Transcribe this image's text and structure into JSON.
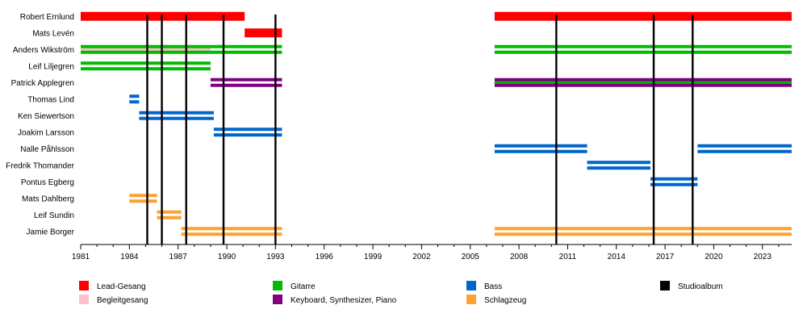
{
  "chart_data": {
    "type": "timeline",
    "title": "",
    "xlabel": "",
    "ylabel": "",
    "xlim": [
      1981,
      2024.8
    ],
    "x_ticks": [
      "1981",
      "1984",
      "1987",
      "1990",
      "1993",
      "1996",
      "1999",
      "2002",
      "2005",
      "2008",
      "2011",
      "2014",
      "2017",
      "2020",
      "2023"
    ],
    "grid": false,
    "legend_position": "bottom",
    "roles": [
      {
        "name": "Lead-Gesang",
        "color": "#ff0000"
      },
      {
        "name": "Begleitgesang",
        "color": "#ffc0cb"
      },
      {
        "name": "Gitarre",
        "color": "#00bb00"
      },
      {
        "name": "Keyboard, Synthesizer, Piano",
        "color": "#800080"
      },
      {
        "name": "Bass",
        "color": "#0066cc"
      },
      {
        "name": "Schlagzeug",
        "color": "#ffa030"
      },
      {
        "name": "Studioalbum",
        "color": "#000000"
      }
    ],
    "members": [
      {
        "name": "Robert Ernlund",
        "periods": [
          {
            "start": 1981,
            "end": 1991.1,
            "roles": [
              "Lead-Gesang"
            ]
          },
          {
            "start": 2006.5,
            "end": 2024.8,
            "roles": [
              "Lead-Gesang"
            ]
          }
        ]
      },
      {
        "name": "Mats Levén",
        "periods": [
          {
            "start": 1991.1,
            "end": 1993.4,
            "roles": [
              "Lead-Gesang"
            ]
          }
        ]
      },
      {
        "name": "Anders Wikström",
        "periods": [
          {
            "start": 1981,
            "end": 1989,
            "roles": [
              "Gitarre",
              "Begleitgesang"
            ]
          },
          {
            "start": 1989,
            "end": 1993.4,
            "roles": [
              "Gitarre"
            ]
          },
          {
            "start": 2006.5,
            "end": 2024.8,
            "roles": [
              "Gitarre"
            ]
          }
        ]
      },
      {
        "name": "Leif Liljegren",
        "periods": [
          {
            "start": 1981,
            "end": 1989,
            "roles": [
              "Gitarre"
            ]
          }
        ]
      },
      {
        "name": "Patrick Applegren",
        "periods": [
          {
            "start": 1989,
            "end": 1993.4,
            "roles": [
              "Keyboard, Synthesizer, Piano"
            ]
          },
          {
            "start": 2006.5,
            "end": 2024.8,
            "roles": [
              "Keyboard, Synthesizer, Piano",
              "Gitarre"
            ]
          }
        ]
      },
      {
        "name": "Thomas Lind",
        "periods": [
          {
            "start": 1984,
            "end": 1984.6,
            "roles": [
              "Bass"
            ]
          }
        ]
      },
      {
        "name": "Ken Siewertson",
        "periods": [
          {
            "start": 1984.6,
            "end": 1989.2,
            "roles": [
              "Bass"
            ]
          }
        ]
      },
      {
        "name": "Joakim Larsson",
        "periods": [
          {
            "start": 1989.2,
            "end": 1993.4,
            "roles": [
              "Bass"
            ]
          }
        ]
      },
      {
        "name": "Nalle Påhlsson",
        "periods": [
          {
            "start": 2006.5,
            "end": 2012.2,
            "roles": [
              "Bass"
            ]
          },
          {
            "start": 2019,
            "end": 2024.8,
            "roles": [
              "Bass"
            ]
          }
        ]
      },
      {
        "name": "Fredrik Thomander",
        "periods": [
          {
            "start": 2012.2,
            "end": 2016.1,
            "roles": [
              "Bass"
            ]
          }
        ]
      },
      {
        "name": "Pontus Egberg",
        "periods": [
          {
            "start": 2016.1,
            "end": 2019,
            "roles": [
              "Bass"
            ]
          }
        ]
      },
      {
        "name": "Mats Dahlberg",
        "periods": [
          {
            "start": 1984,
            "end": 1985.7,
            "roles": [
              "Schlagzeug"
            ]
          }
        ]
      },
      {
        "name": "Leif Sundin",
        "periods": [
          {
            "start": 1985.7,
            "end": 1987.2,
            "roles": [
              "Schlagzeug"
            ]
          }
        ]
      },
      {
        "name": "Jamie Borger",
        "periods": [
          {
            "start": 1987.2,
            "end": 1993.4,
            "roles": [
              "Schlagzeug"
            ]
          },
          {
            "start": 2006.5,
            "end": 2024.8,
            "roles": [
              "Schlagzeug"
            ]
          }
        ]
      }
    ],
    "studio_albums": [
      1985.1,
      1986.0,
      1987.5,
      1989.8,
      1993.0,
      2010.3,
      2016.3,
      2018.7
    ]
  }
}
